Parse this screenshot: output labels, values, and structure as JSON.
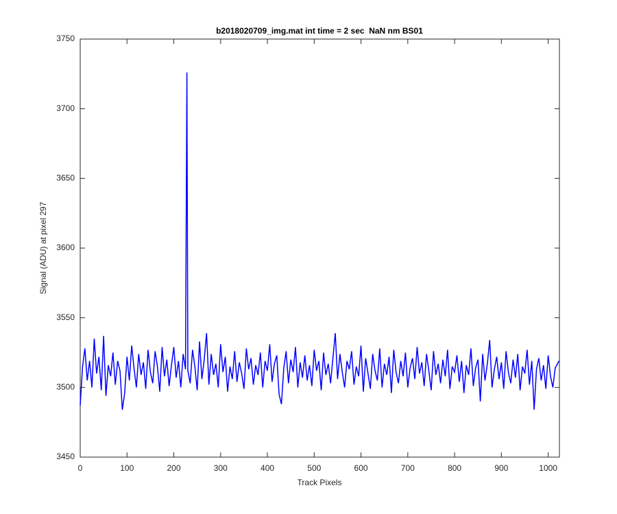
{
  "chart_data": {
    "type": "line",
    "title": "b2018020709_img.mat int time = 2 sec  NaN nm BS01",
    "x_label": "Track Pixels",
    "y_label": "Signal (ADU) at pixel 297",
    "xlim": [
      0,
      1024
    ],
    "ylim": [
      3450,
      3750
    ],
    "xticks": [
      0,
      100,
      200,
      300,
      400,
      500,
      600,
      700,
      800,
      900,
      1000
    ],
    "yticks": [
      3450,
      3500,
      3550,
      3600,
      3650,
      3700,
      3750
    ],
    "grid": false,
    "x": [
      0,
      5,
      10,
      15,
      20,
      25,
      30,
      35,
      40,
      45,
      50,
      55,
      60,
      65,
      70,
      75,
      80,
      85,
      90,
      95,
      100,
      105,
      110,
      115,
      120,
      125,
      130,
      135,
      140,
      145,
      150,
      155,
      160,
      165,
      170,
      175,
      180,
      185,
      190,
      195,
      200,
      205,
      210,
      215,
      220,
      225,
      228,
      230,
      235,
      240,
      245,
      250,
      255,
      260,
      265,
      270,
      275,
      280,
      285,
      290,
      295,
      300,
      305,
      310,
      315,
      320,
      325,
      330,
      335,
      340,
      345,
      350,
      355,
      360,
      365,
      370,
      375,
      380,
      385,
      390,
      395,
      400,
      405,
      410,
      415,
      420,
      425,
      430,
      435,
      440,
      445,
      450,
      455,
      460,
      465,
      470,
      475,
      480,
      485,
      490,
      495,
      500,
      505,
      510,
      515,
      520,
      525,
      530,
      535,
      540,
      545,
      550,
      555,
      560,
      565,
      570,
      575,
      580,
      585,
      590,
      595,
      600,
      605,
      610,
      615,
      620,
      625,
      630,
      635,
      640,
      645,
      650,
      655,
      660,
      665,
      670,
      675,
      680,
      685,
      690,
      695,
      700,
      705,
      710,
      715,
      720,
      725,
      730,
      735,
      740,
      745,
      750,
      755,
      760,
      765,
      770,
      775,
      780,
      785,
      790,
      795,
      800,
      805,
      810,
      815,
      820,
      825,
      830,
      835,
      840,
      845,
      850,
      855,
      860,
      865,
      870,
      875,
      880,
      885,
      890,
      895,
      900,
      905,
      910,
      915,
      920,
      925,
      930,
      935,
      940,
      945,
      950,
      955,
      960,
      965,
      970,
      975,
      980,
      985,
      990,
      995,
      1000,
      1005,
      1010,
      1015,
      1020,
      1023
    ],
    "series": [
      {
        "color": "#0000ff",
        "values": [
          3487,
          3515,
          3528,
          3505,
          3519,
          3500,
          3535,
          3510,
          3522,
          3498,
          3537,
          3494,
          3516,
          3508,
          3525,
          3502,
          3519,
          3512,
          3484,
          3496,
          3522,
          3505,
          3530,
          3514,
          3500,
          3524,
          3509,
          3518,
          3499,
          3527,
          3511,
          3503,
          3526,
          3515,
          3497,
          3529,
          3508,
          3520,
          3501,
          3516,
          3529,
          3507,
          3519,
          3500,
          3524,
          3513,
          3726,
          3512,
          3503,
          3527,
          3515,
          3498,
          3533,
          3506,
          3520,
          3539,
          3502,
          3524,
          3509,
          3517,
          3500,
          3531,
          3511,
          3522,
          3497,
          3515,
          3506,
          3526,
          3504,
          3518,
          3510,
          3499,
          3528,
          3513,
          3521,
          3502,
          3516,
          3509,
          3525,
          3500,
          3519,
          3512,
          3531,
          3504,
          3517,
          3523,
          3495,
          3488,
          3514,
          3526,
          3503,
          3520,
          3511,
          3529,
          3500,
          3518,
          3507,
          3523,
          3505,
          3516,
          3501,
          3527,
          3512,
          3519,
          3498,
          3525,
          3509,
          3517,
          3503,
          3521,
          3539,
          3506,
          3524,
          3511,
          3500,
          3519,
          3513,
          3526,
          3502,
          3515,
          3508,
          3530,
          3497,
          3521,
          3510,
          3499,
          3524,
          3512,
          3505,
          3528,
          3500,
          3517,
          3509,
          3522,
          3496,
          3527,
          3511,
          3503,
          3519,
          3508,
          3525,
          3500,
          3514,
          3521,
          3506,
          3529,
          3510,
          3518,
          3501,
          3524,
          3512,
          3498,
          3526,
          3509,
          3517,
          3503,
          3520,
          3508,
          3527,
          3499,
          3515,
          3511,
          3523,
          3504,
          3519,
          3496,
          3516,
          3509,
          3528,
          3501,
          3514,
          3520,
          3490,
          3524,
          3505,
          3517,
          3534,
          3500,
          3513,
          3522,
          3506,
          3518,
          3499,
          3526,
          3511,
          3503,
          3520,
          3507,
          3524,
          3498,
          3515,
          3510,
          3527,
          3502,
          3519,
          3484,
          3513,
          3521,
          3505,
          3516,
          3499,
          3523,
          3508,
          3500,
          3514,
          3517,
          3519
        ]
      }
    ]
  }
}
